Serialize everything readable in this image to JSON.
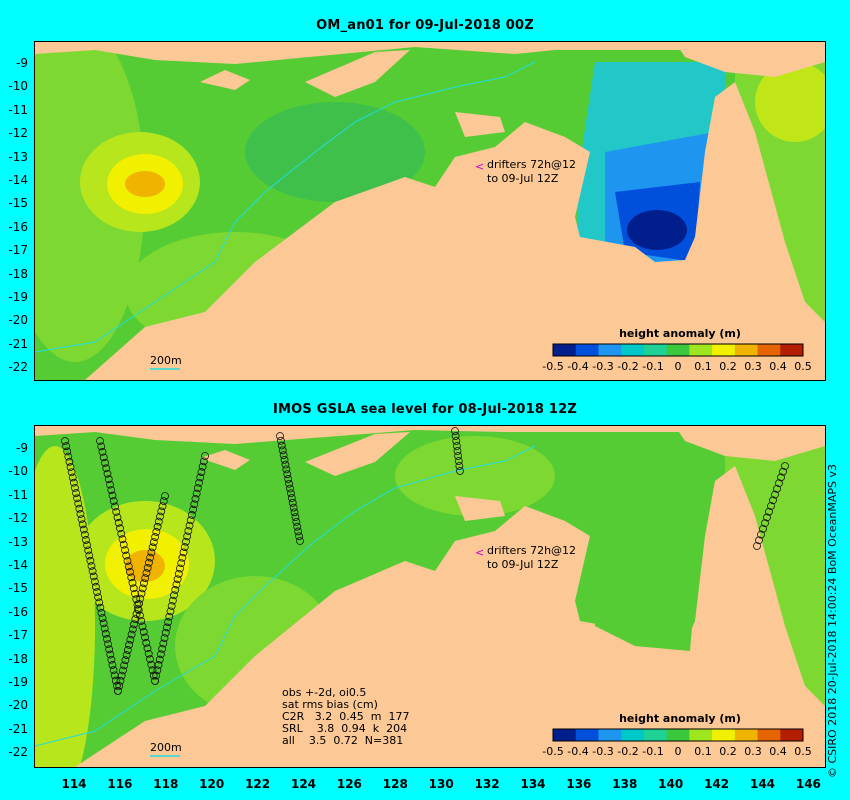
{
  "top_panel": {
    "title": "OM_an01 for 09-Jul-2018 00Z",
    "drifter_note_1": "drifters 72h@12",
    "drifter_note_2": "to 09-Jul 12Z",
    "depth_contour_label": "200m",
    "legend_title": "height anomaly (m)"
  },
  "bottom_panel": {
    "title": "IMOS GSLA sea level  for 08-Jul-2018 12Z",
    "drifter_note_1": "drifters 72h@12",
    "drifter_note_2": "to 09-Jul 12Z",
    "depth_contour_label": "200m",
    "legend_title": "height anomaly (m)",
    "stats": [
      "obs +-2d, oi0.5",
      "sat rms bias (cm)",
      "C2R   3.2  0.45  m  177",
      "SRL    3.8  0.94  k  204",
      "all    3.5  0.72  N=381"
    ]
  },
  "colorbar": {
    "labels": [
      "-0.5",
      "-0.4",
      "-0.3",
      "-0.2",
      "-0.1",
      "0",
      "0.1",
      "0.2",
      "0.3",
      "0.4",
      "0.5"
    ],
    "colors": [
      "#001e8c",
      "#0050dc",
      "#1e96f0",
      "#00c8c8",
      "#1ed296",
      "#3cc83c",
      "#a0e61e",
      "#f0f000",
      "#f0b400",
      "#e66400",
      "#b41e00"
    ]
  },
  "y_ticks": [
    "-9",
    "-10",
    "-11",
    "-12",
    "-13",
    "-14",
    "-15",
    "-16",
    "-17",
    "-18",
    "-19",
    "-20",
    "-21",
    "-22"
  ],
  "x_ticks": [
    "114",
    "116",
    "118",
    "120",
    "122",
    "124",
    "126",
    "128",
    "130",
    "132",
    "134",
    "136",
    "138",
    "140",
    "142",
    "144",
    "146"
  ],
  "credit": "© CSIRO 2018  20-Jul-2018 14:00:24 BoM OceanMAPS v3",
  "colors": {
    "background": "#00ffff",
    "land": "#fcc896",
    "ocean_base": "#55cc33",
    "drifter_arrow": "#cc00cc"
  }
}
